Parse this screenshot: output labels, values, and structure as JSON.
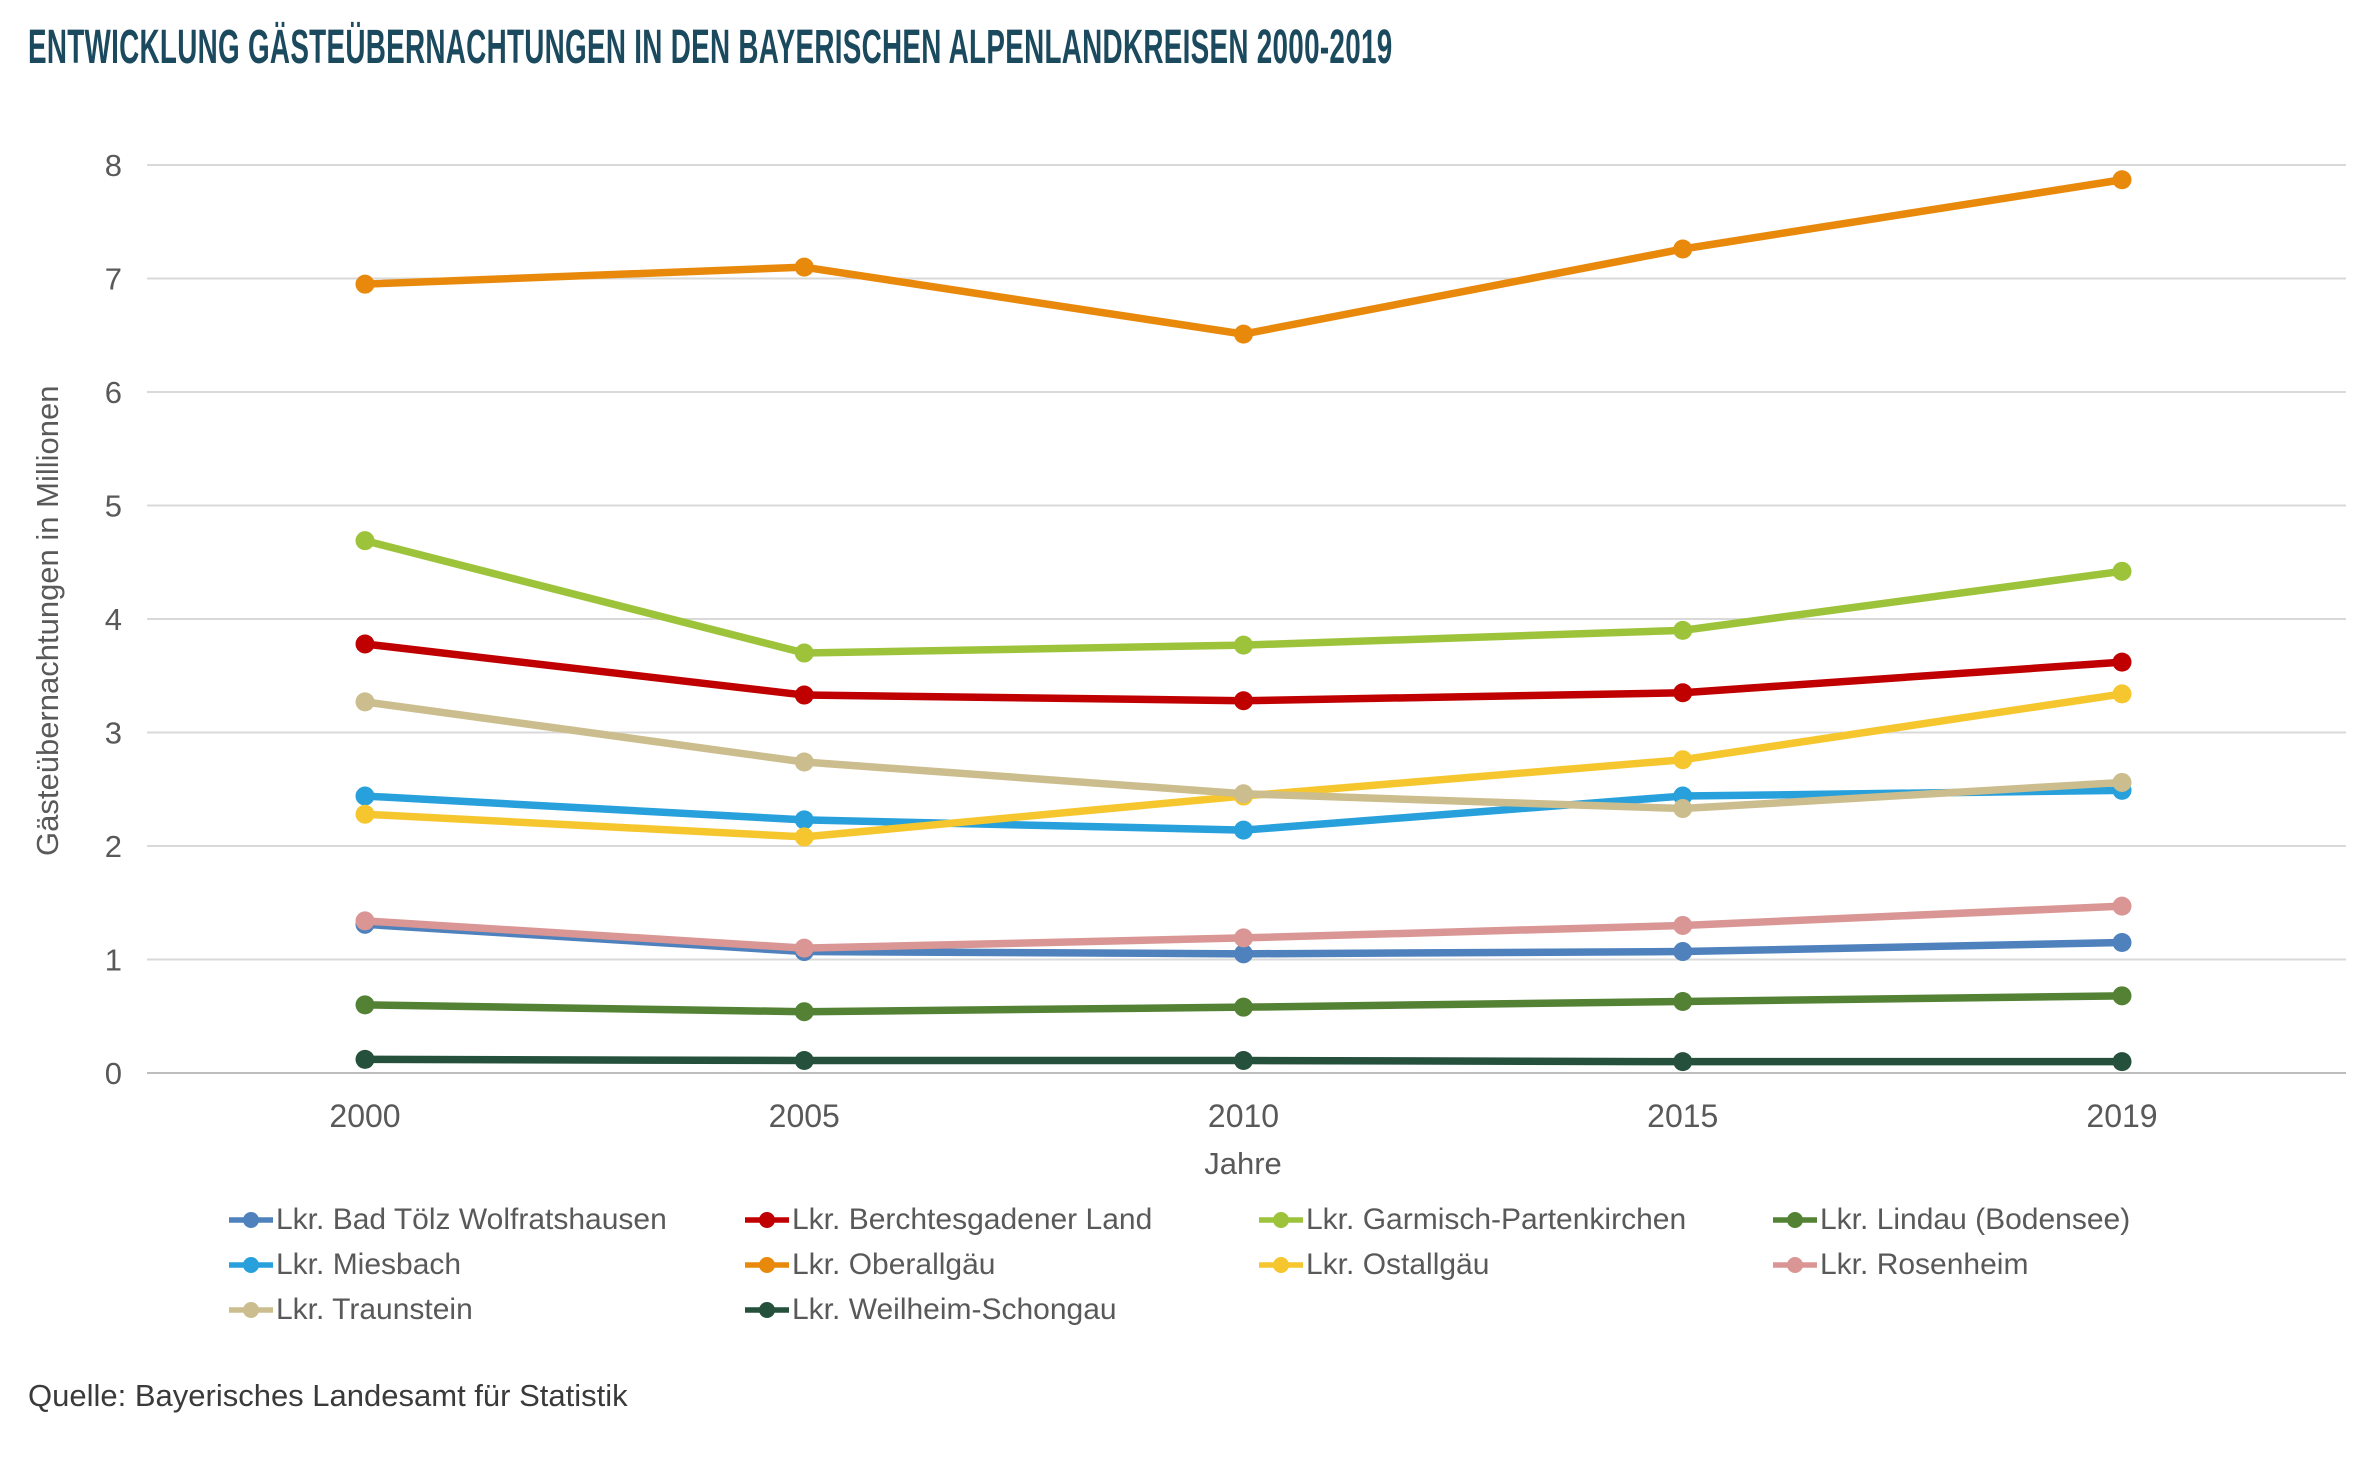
{
  "title": "ENTWICKLUNG GÄSTEÜBERNACHTUNGEN IN DEN BAYERISCHEN ALPENLANDKREISEN 2000-2019",
  "source": "Quelle: Bayerisches Landesamt für Statistik",
  "colors": {
    "title": "#1B4A5F",
    "axis_text": "#595959",
    "gridline": "#D9D9D9",
    "baseline": "#BDBDBD"
  },
  "chart_data": {
    "type": "line",
    "x": [
      2000,
      2005,
      2010,
      2015,
      2019
    ],
    "xlabel": "Jahre",
    "ylabel": "Gästeübernachtungen in Millionen",
    "ylim": [
      0,
      8
    ],
    "yticks": [
      0,
      1,
      2,
      3,
      4,
      5,
      6,
      7,
      8
    ],
    "grid": true,
    "legend_position": "bottom",
    "marker": "circle",
    "series": [
      {
        "name": "Lkr. Bad Tölz Wolfratshausen",
        "color": "#4F81BD",
        "values": [
          1.31,
          1.07,
          1.05,
          1.07,
          1.15
        ]
      },
      {
        "name": "Lkr. Berchtesgadener Land",
        "color": "#C00000",
        "values": [
          3.78,
          3.33,
          3.28,
          3.35,
          3.62
        ]
      },
      {
        "name": "Lkr. Garmisch-Partenkirchen",
        "color": "#9DC33B",
        "values": [
          4.69,
          3.7,
          3.77,
          3.9,
          4.42
        ]
      },
      {
        "name": "Lkr. Lindau (Bodensee)",
        "color": "#548235",
        "values": [
          0.6,
          0.54,
          0.58,
          0.63,
          0.68
        ]
      },
      {
        "name": "Lkr. Miesbach",
        "color": "#27A0DB",
        "values": [
          2.44,
          2.23,
          2.14,
          2.44,
          2.49
        ]
      },
      {
        "name": "Lkr. Oberallgäu",
        "color": "#E8890C",
        "values": [
          6.95,
          7.1,
          6.51,
          7.26,
          7.87
        ]
      },
      {
        "name": "Lkr. Ostallgäu",
        "color": "#F6C62E",
        "values": [
          2.28,
          2.08,
          2.44,
          2.76,
          3.34
        ]
      },
      {
        "name": "Lkr. Rosenheim",
        "color": "#D99694",
        "values": [
          1.34,
          1.1,
          1.19,
          1.3,
          1.47
        ]
      },
      {
        "name": "Lkr. Traunstein",
        "color": "#CBBD8D",
        "values": [
          3.27,
          2.74,
          2.46,
          2.33,
          2.56
        ]
      },
      {
        "name": "Lkr. Weilheim-Schongau",
        "color": "#25503C",
        "values": [
          0.12,
          0.11,
          0.11,
          0.1,
          0.1
        ]
      }
    ]
  }
}
